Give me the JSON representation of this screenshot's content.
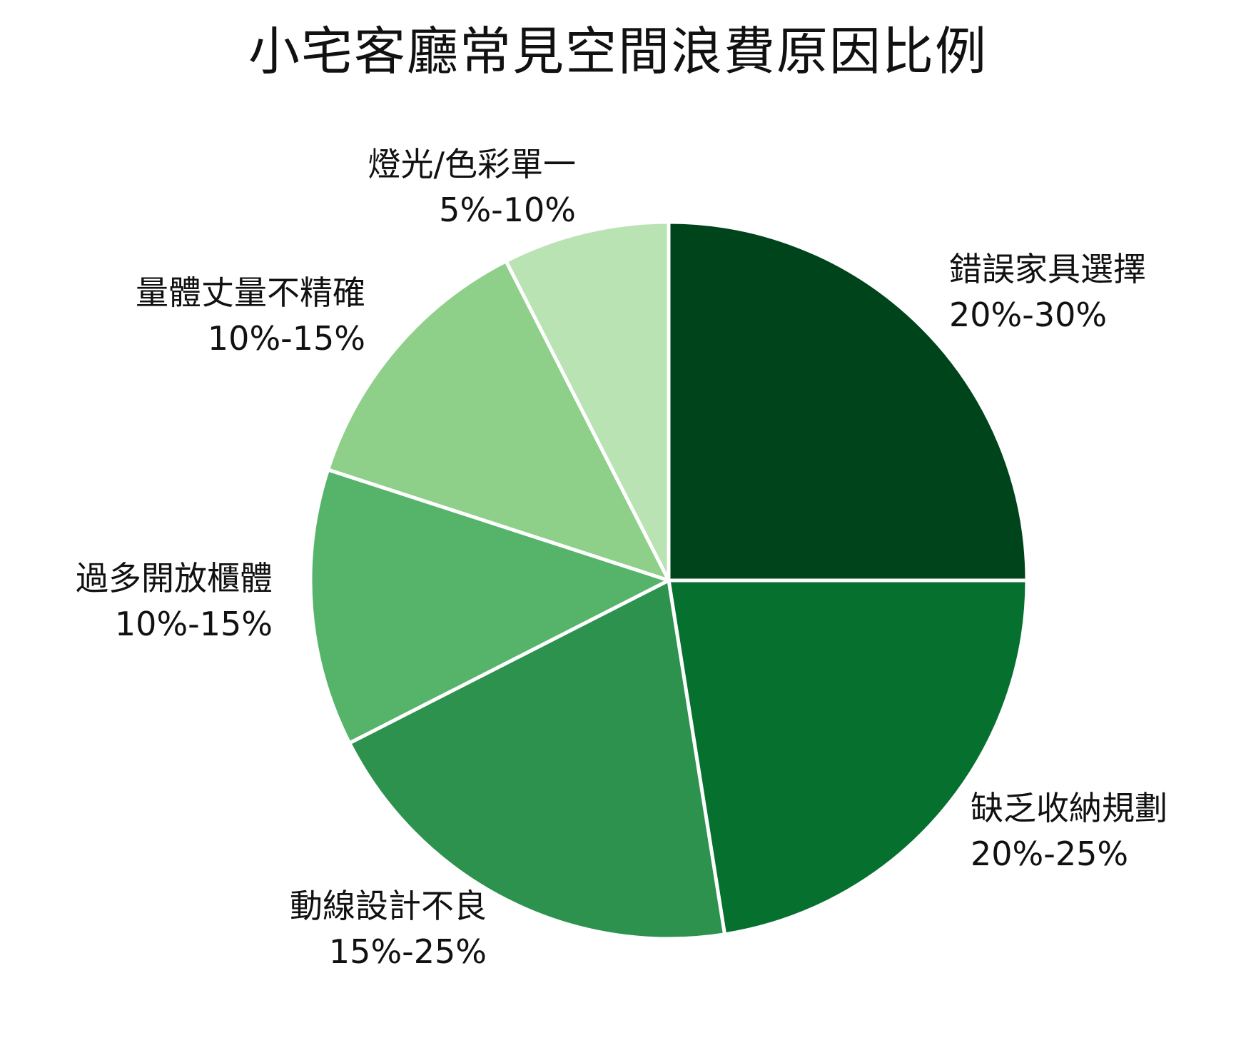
{
  "chart_data": {
    "type": "pie",
    "title": "小宅客廳常見空間浪費原因比例",
    "start_angle_deg": 90,
    "direction": "clockwise",
    "center": [
      937,
      813
    ],
    "radius": 502,
    "slices": [
      {
        "label": "錯誤家具選擇",
        "range_text": "20%-30%",
        "value": 25,
        "color": "#00441b"
      },
      {
        "label": "缺乏收納規劃",
        "range_text": "20%-25%",
        "value": 22.5,
        "color": "#06702f"
      },
      {
        "label": "動線設計不良",
        "range_text": "15%-25%",
        "value": 20,
        "color": "#2c924d"
      },
      {
        "label": "過多開放櫃體",
        "range_text": "10%-15%",
        "value": 12.5,
        "color": "#55b46a"
      },
      {
        "label": "量體丈量不精確",
        "range_text": "10%-15%",
        "value": 12.5,
        "color": "#8ecf89"
      },
      {
        "label": "燈光/色彩單一",
        "range_text": "5%-10%",
        "value": 7.5,
        "color": "#b9e3b2"
      }
    ],
    "legend": "none (labels placed outside slices)"
  }
}
